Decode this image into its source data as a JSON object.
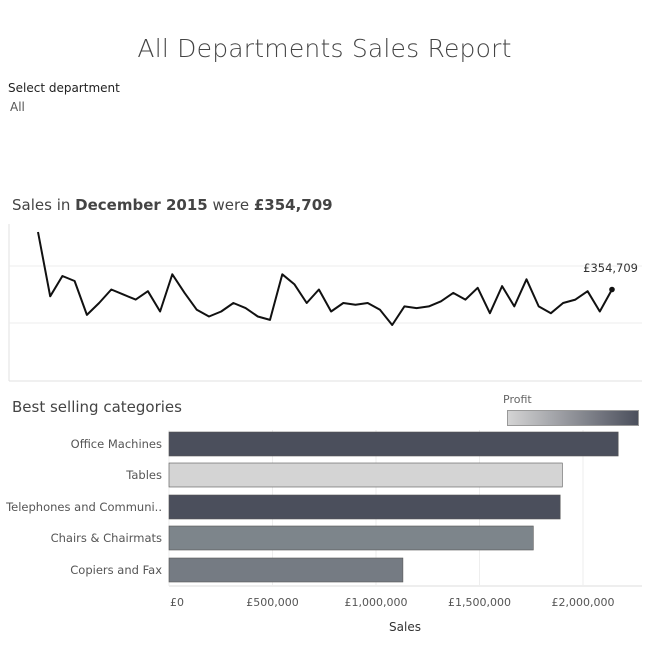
{
  "title": "All Departments Sales Report",
  "filter": {
    "label": "Select department",
    "value": "All"
  },
  "headline": {
    "prefix": "Sales in ",
    "period": "December 2015",
    "middle": " were ",
    "amount": "£354,709"
  },
  "line_chart_title": "Sales in December 2015 were £354,709",
  "bar_section_title": "Best selling categories",
  "legend": {
    "title": "Profit",
    "low_color": "#d4d4d4",
    "high_color": "#4b4f5c"
  },
  "chart_data": [
    {
      "type": "line",
      "title": "",
      "last_point_label": "£354,709",
      "y_hidden": true,
      "ylim": [
        0,
        100
      ],
      "series": [
        {
          "values": [
            100,
            62,
            74,
            71,
            51,
            58,
            66,
            63,
            60,
            65,
            53,
            75,
            64,
            54,
            50,
            53,
            58,
            55,
            50,
            48,
            75,
            69,
            58,
            66,
            53,
            58,
            57,
            58,
            54,
            45,
            56,
            55,
            56,
            59,
            64,
            60,
            67,
            52,
            68,
            56,
            72,
            56,
            52,
            58,
            60,
            65,
            53,
            66
          ]
        }
      ],
      "line_color": "#111111"
    },
    {
      "type": "bar",
      "orientation": "horizontal",
      "categories": [
        "Office Machines",
        "Tables",
        "Telephones and Communi..",
        "Chairs & Chairmats",
        "Copiers and Fax"
      ],
      "values": [
        2170000,
        1900000,
        1890000,
        1760000,
        1130000
      ],
      "colors": [
        "#4b4f5c",
        "#d4d4d4",
        "#4b4f5c",
        "#7d858b",
        "#757b83"
      ],
      "xlabel": "Sales",
      "xticks": [
        "£0",
        "£500,000",
        "£1,000,000",
        "£1,500,000",
        "£2,000,000"
      ],
      "xtick_values": [
        0,
        500000,
        1000000,
        1500000,
        2000000
      ],
      "xlim": [
        0,
        2250000
      ]
    }
  ]
}
